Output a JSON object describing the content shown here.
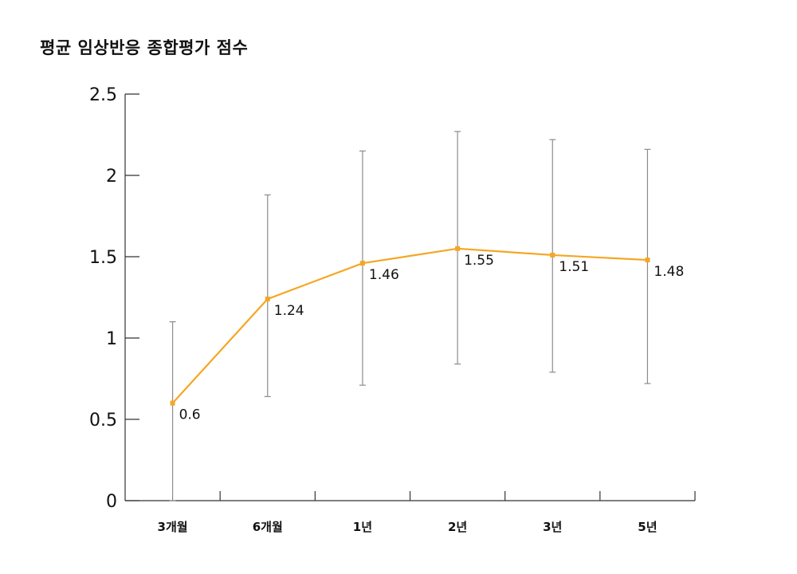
{
  "title": "평균 임상반응 종합평가 점수",
  "chart_data": {
    "type": "line",
    "title": "평균 임상반응 종합평가 점수",
    "categories": [
      "3개월",
      "6개월",
      "1년",
      "2년",
      "3년",
      "5년"
    ],
    "series": [
      {
        "values": [
          0.6,
          1.24,
          1.46,
          1.55,
          1.51,
          1.48
        ],
        "error_low": [
          0.0,
          0.64,
          0.71,
          0.84,
          0.79,
          0.72
        ],
        "error_high": [
          1.1,
          1.88,
          2.15,
          2.27,
          2.22,
          2.16
        ],
        "color": "#f5a623"
      }
    ],
    "data_labels": [
      "0.6",
      "1.24",
      "1.46",
      "1.55",
      "1.51",
      "1.48"
    ],
    "y_ticks": [
      "0",
      "0.5",
      "1",
      "1.5",
      "2",
      "2.5"
    ],
    "ylim": [
      0,
      2.5
    ],
    "xlabel": "",
    "ylabel": "",
    "grid": false,
    "legend": "none",
    "error_bar_color": "#8c8c8c",
    "axis_color": "#333333"
  }
}
